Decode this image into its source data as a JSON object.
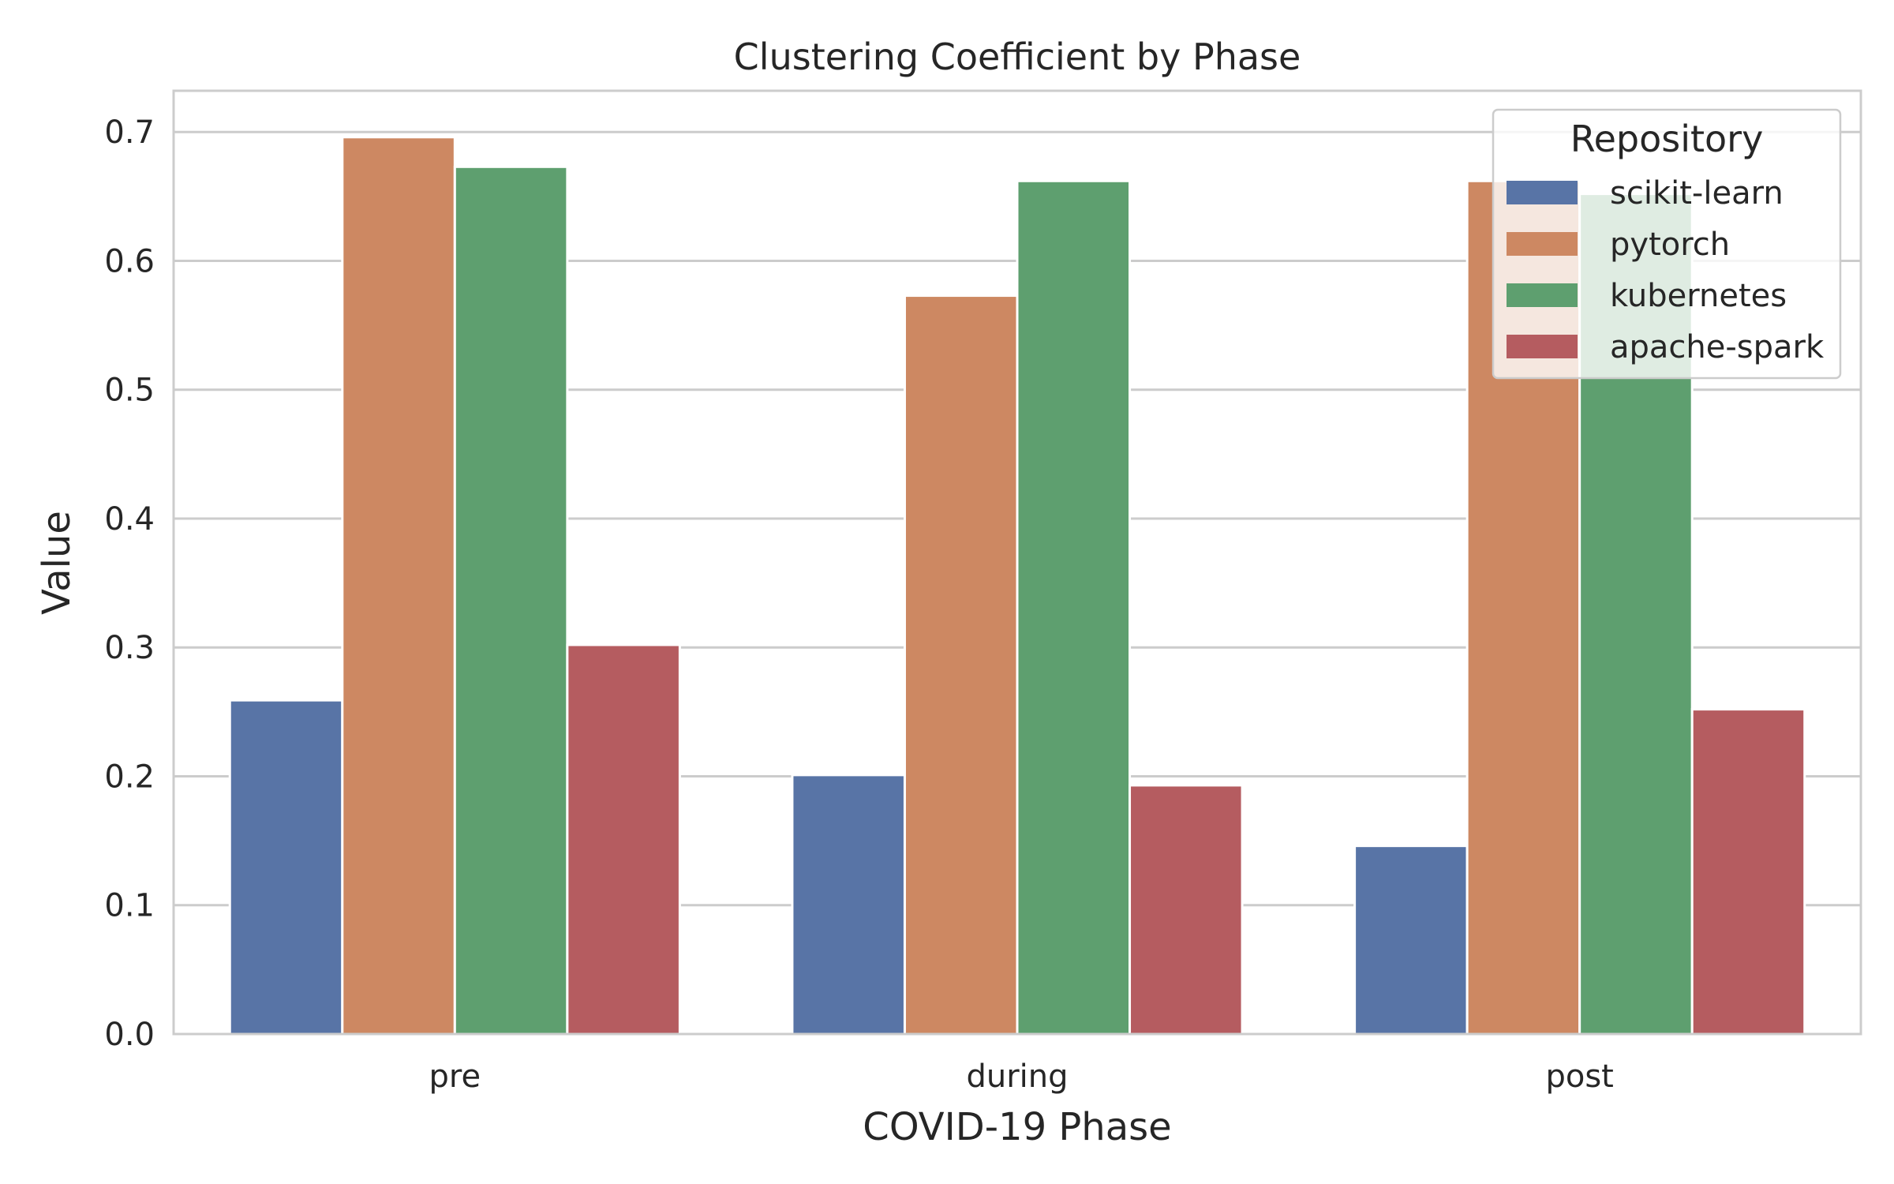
{
  "chart_data": {
    "type": "bar",
    "title": "Clustering Coefficient by Phase",
    "xlabel": "COVID-19 Phase",
    "ylabel": "Value",
    "ylim": [
      0,
      0.732
    ],
    "yticks": [
      0.0,
      0.1,
      0.2,
      0.3,
      0.4,
      0.5,
      0.6,
      0.7
    ],
    "ytick_labels": [
      "0.0",
      "0.1",
      "0.2",
      "0.3",
      "0.4",
      "0.5",
      "0.6",
      "0.7"
    ],
    "categories": [
      "pre",
      "during",
      "post"
    ],
    "grid": true,
    "legend": {
      "title": "Repository",
      "placement": "top-right"
    },
    "series": [
      {
        "name": "scikit-learn",
        "color": "#5874a6",
        "values": [
          0.259,
          0.201,
          0.146
        ]
      },
      {
        "name": "pytorch",
        "color": "#cd8862",
        "values": [
          0.696,
          0.573,
          0.662
        ]
      },
      {
        "name": "kubernetes",
        "color": "#5e9f6f",
        "values": [
          0.673,
          0.662,
          0.652
        ]
      },
      {
        "name": "apache-spark",
        "color": "#b55c60",
        "values": [
          0.302,
          0.193,
          0.252
        ]
      }
    ]
  }
}
